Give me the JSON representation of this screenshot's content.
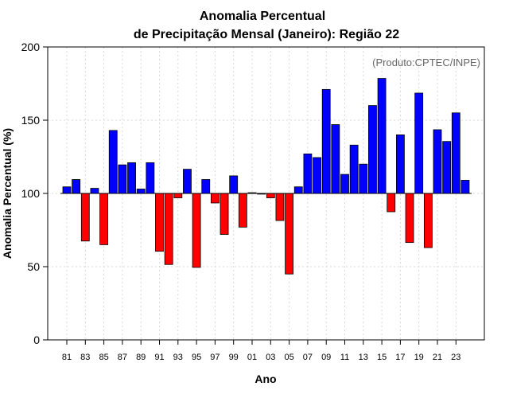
{
  "chart_data": {
    "type": "bar",
    "title_line1": "Anomalia Percentual",
    "title_line2": "de Precipitação Mensal (Janeiro): Região 22",
    "xlabel": "Ano",
    "ylabel": "Anomalia Percentual (%)",
    "annotation": "(Produto:CPTEC/INPE)",
    "baseline": 100,
    "ylim": [
      0,
      200
    ],
    "yticks": [
      0,
      50,
      100,
      150,
      200
    ],
    "xtick_labels": [
      "81",
      "83",
      "85",
      "87",
      "89",
      "91",
      "93",
      "95",
      "97",
      "99",
      "01",
      "03",
      "05",
      "07",
      "09",
      "11",
      "13",
      "15",
      "17",
      "19",
      "21",
      "23"
    ],
    "years": [
      1981,
      1982,
      1983,
      1984,
      1985,
      1986,
      1987,
      1988,
      1989,
      1990,
      1991,
      1992,
      1993,
      1994,
      1995,
      1996,
      1997,
      1998,
      1999,
      2000,
      2001,
      2002,
      2003,
      2004,
      2005,
      2006,
      2007,
      2008,
      2009,
      2010,
      2011,
      2012,
      2013,
      2014,
      2015,
      2016,
      2017,
      2018,
      2019,
      2020,
      2021,
      2022,
      2023,
      2024
    ],
    "values": [
      104.5,
      109.5,
      67.5,
      103.5,
      65,
      143,
      119.5,
      121,
      103,
      121,
      60.5,
      51.5,
      97,
      116.5,
      49.5,
      109.5,
      93.5,
      72,
      112,
      77,
      100.5,
      99.5,
      97,
      81.5,
      45,
      104.5,
      127,
      124.5,
      171,
      147,
      113,
      133,
      120,
      160,
      178.5,
      87.5,
      140,
      66.5,
      168.5,
      63,
      143.5,
      135.5,
      155,
      109
    ],
    "colors": {
      "above": "#0000ff",
      "below": "#ff0000",
      "edge": "#000000",
      "grid": "#d9d9d9"
    }
  }
}
